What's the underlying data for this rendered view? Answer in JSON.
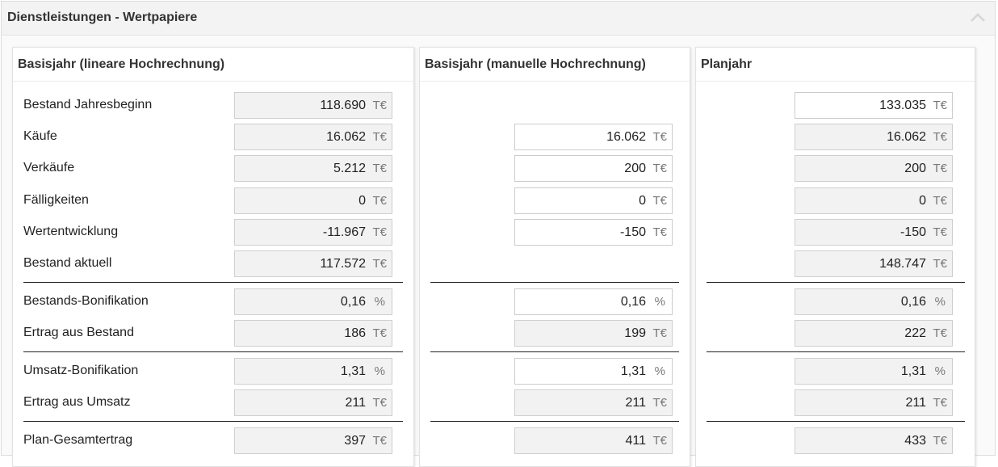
{
  "section": {
    "title": "Dienstleistungen - Wertpapiere"
  },
  "icons": {
    "collapse": "chevron-up-icon"
  },
  "panels": {
    "linear": {
      "title": "Basisjahr (lineare Hochrechnung)",
      "labels": {
        "bestand_jahresbeginn": "Bestand Jahresbeginn",
        "kaeufe": "Käufe",
        "verkaeufe": "Verkäufe",
        "faelligkeiten": "Fälligkeiten",
        "wertentwicklung": "Wertentwicklung",
        "bestand_aktuell": "Bestand aktuell",
        "bestands_bonifikation": "Bestands-Bonifikation",
        "ertrag_aus_bestand": "Ertrag aus Bestand",
        "umsatz_bonifikation": "Umsatz-Bonifikation",
        "ertrag_aus_umsatz": "Ertrag aus Umsatz",
        "plan_gesamtertrag": "Plan-Gesamtertrag"
      },
      "values": {
        "bestand_jahresbeginn": "118.690",
        "kaeufe": "16.062",
        "verkaeufe": "5.212",
        "faelligkeiten": "0",
        "wertentwicklung": "-11.967",
        "bestand_aktuell": "117.572",
        "bestands_bonifikation": "0,16",
        "ertrag_aus_bestand": "186",
        "umsatz_bonifikation": "1,31",
        "ertrag_aus_umsatz": "211",
        "plan_gesamtertrag": "397"
      }
    },
    "manual": {
      "title": "Basisjahr (manuelle Hochrechnung)",
      "values": {
        "kaeufe": "16.062",
        "verkaeufe": "200",
        "faelligkeiten": "0",
        "wertentwicklung": "-150",
        "bestands_bonifikation": "0,16",
        "ertrag_aus_bestand": "199",
        "umsatz_bonifikation": "1,31",
        "ertrag_aus_umsatz": "211",
        "plan_gesamtertrag": "411"
      }
    },
    "plan": {
      "title": "Planjahr",
      "values": {
        "bestand_jahresbeginn": "133.035",
        "kaeufe": "16.062",
        "verkaeufe": "200",
        "faelligkeiten": "0",
        "wertentwicklung": "-150",
        "bestand_aktuell": "148.747",
        "bestands_bonifikation": "0,16",
        "ertrag_aus_bestand": "222",
        "umsatz_bonifikation": "1,31",
        "ertrag_aus_umsatz": "211",
        "plan_gesamtertrag": "433"
      }
    }
  },
  "units": {
    "currency": "T€",
    "percent": "%"
  }
}
